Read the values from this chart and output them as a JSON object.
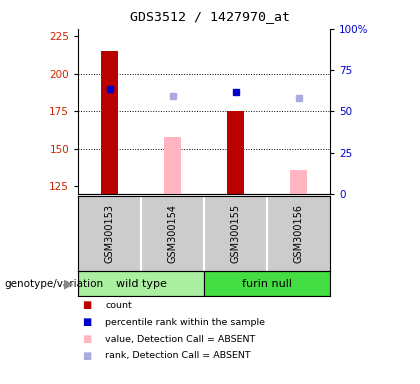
{
  "title": "GDS3512 / 1427970_at",
  "samples": [
    "GSM300153",
    "GSM300154",
    "GSM300155",
    "GSM300156"
  ],
  "ylim_left": [
    120,
    230
  ],
  "ylim_right": [
    0,
    100
  ],
  "yticks_left": [
    125,
    150,
    175,
    200,
    225
  ],
  "yticks_right": [
    0,
    25,
    50,
    75,
    100
  ],
  "ytick_labels_right": [
    "0",
    "25",
    "50",
    "75",
    "100%"
  ],
  "count_values": [
    215,
    null,
    175,
    null
  ],
  "count_color": "#BB0000",
  "percentile_values": [
    190,
    null,
    188,
    null
  ],
  "percentile_color": "#0000CC",
  "absent_value_values": [
    null,
    158,
    null,
    136
  ],
  "absent_value_color": "#FFB6C1",
  "absent_rank_values": [
    null,
    185,
    null,
    184
  ],
  "absent_rank_color": "#AAAADD",
  "label_color_left": "#CC2200",
  "label_color_right": "#0000CC",
  "wt_color": "#AAEEA0",
  "fn_color": "#44DD44",
  "genotype_label": "genotype/variation"
}
